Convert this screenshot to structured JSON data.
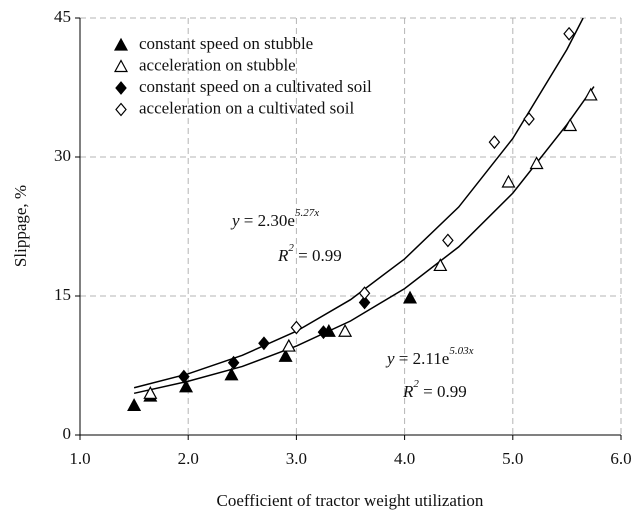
{
  "chart_data": {
    "type": "scatter",
    "xlabel": "Coefficient of tractor weight utilization",
    "ylabel": "Slippage,  %",
    "xlim": [
      1.0,
      6.0
    ],
    "ylim": [
      0,
      45
    ],
    "xticks": [
      {
        "value": 1,
        "label": "1.0"
      },
      {
        "value": 2,
        "label": "2.0"
      },
      {
        "value": 3,
        "label": "3.0"
      },
      {
        "value": 4,
        "label": "4.0"
      },
      {
        "value": 5,
        "label": "5.0"
      },
      {
        "value": 6,
        "label": "6.0"
      }
    ],
    "yticks": [
      0,
      15,
      30,
      45
    ],
    "grid": true,
    "legend": "upper left",
    "series": [
      {
        "name": "constant speed on stubble",
        "marker": "triangle",
        "filled": true,
        "color": "#000000",
        "x": [
          1.5,
          1.65,
          1.98,
          2.4,
          2.9,
          3.3,
          4.05
        ],
        "values": [
          3.2,
          4.2,
          5.2,
          6.5,
          8.5,
          11.2,
          14.8
        ]
      },
      {
        "name": " acceleration on stubble",
        "marker": "triangle",
        "filled": false,
        "color": "#000000",
        "x": [
          1.65,
          2.93,
          3.45,
          4.33,
          4.96,
          5.22,
          5.53,
          5.72
        ],
        "values": [
          4.5,
          9.6,
          11.2,
          18.3,
          27.3,
          29.3,
          33.4,
          36.7
        ]
      },
      {
        "name": "constant  speed on a cultivated soil",
        "marker": "diamond",
        "filled": true,
        "color": "#000000",
        "x": [
          1.96,
          2.42,
          2.7,
          3.25,
          3.63
        ],
        "values": [
          6.3,
          7.8,
          9.9,
          11.1,
          14.3
        ]
      },
      {
        "name": "acceleration on a cultivated soil",
        "marker": "diamond",
        "filled": false,
        "color": "#000000",
        "x": [
          3.0,
          3.63,
          4.4,
          4.83,
          5.15,
          5.52
        ],
        "values": [
          11.6,
          15.3,
          21.0,
          31.6,
          34.1,
          43.3
        ]
      }
    ],
    "curves": [
      {
        "color": "#000000",
        "x": [
          1.5,
          2.0,
          2.5,
          3.0,
          3.5,
          4.0,
          4.5,
          5.0,
          5.5,
          5.65
        ],
        "values": [
          5.1,
          6.6,
          8.6,
          11.2,
          14.6,
          19.0,
          24.6,
          32.0,
          41.6,
          45.0
        ]
      },
      {
        "color": "#000000",
        "x": [
          1.5,
          2.0,
          2.5,
          3.0,
          3.5,
          4.0,
          4.5,
          5.0,
          5.5,
          5.75
        ],
        "values": [
          4.5,
          5.8,
          7.4,
          9.6,
          12.3,
          15.8,
          20.3,
          26.1,
          33.5,
          37.6
        ]
      }
    ],
    "annotations": [
      {
        "var": "y",
        "text": " = 2.30e",
        "sup": "5.27x"
      },
      {
        "var": "R",
        "sup": "2",
        "text": " = 0.99"
      },
      {
        "var": "y",
        "text": " = 2.11e",
        "sup": "5.03x"
      },
      {
        "var": "R",
        "sup": "2",
        "text": " = 0.99"
      }
    ]
  }
}
